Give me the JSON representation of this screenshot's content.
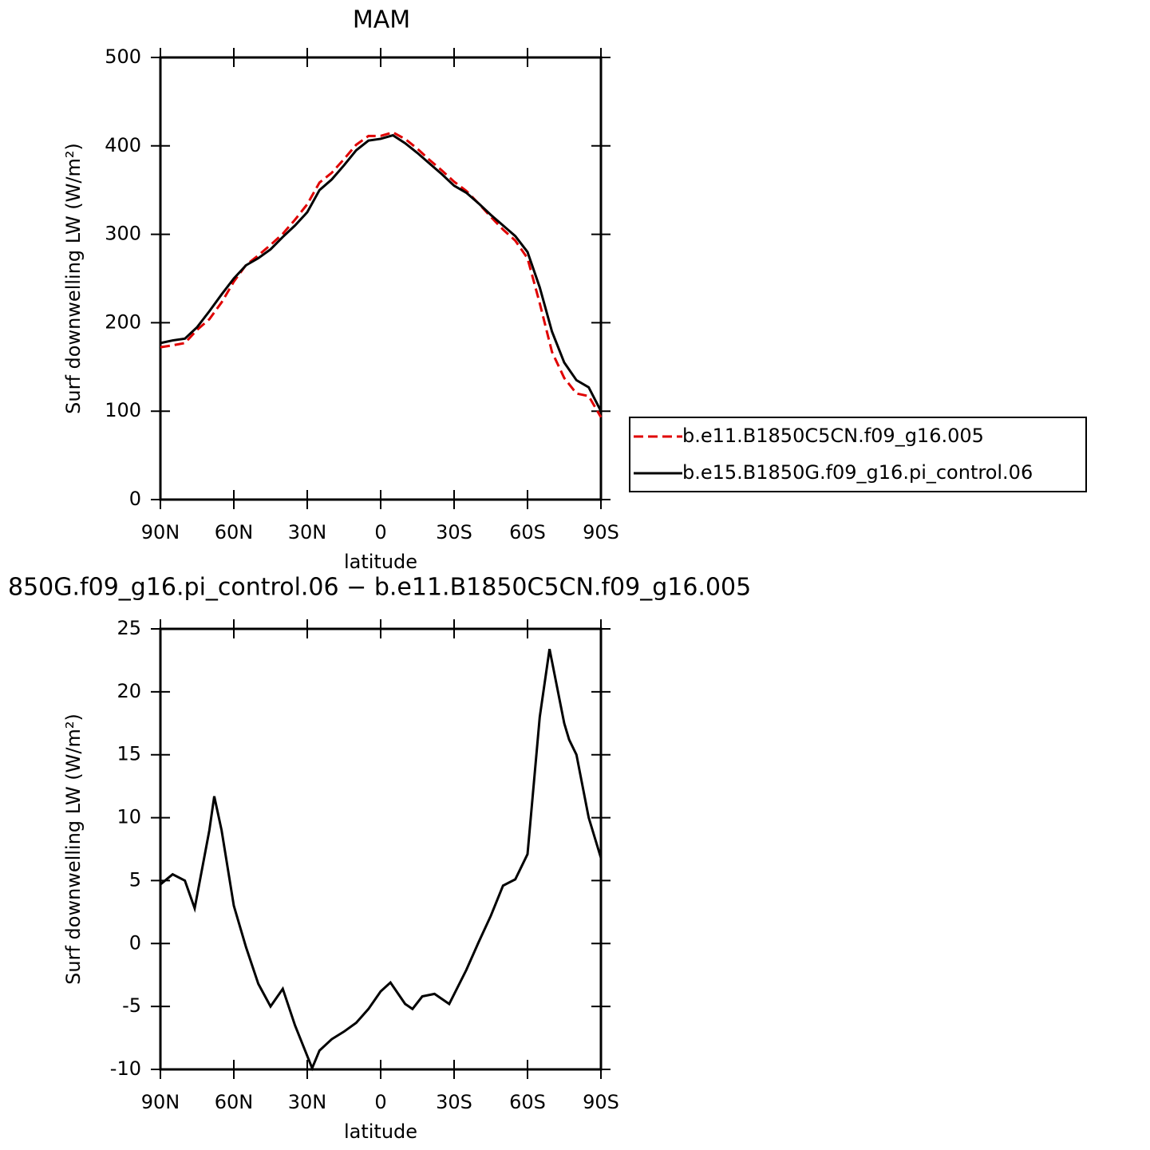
{
  "chart_data": [
    {
      "type": "line",
      "title": "MAM",
      "x_label": "latitude",
      "y_label": "Surf downwelling LW (W/m²)",
      "x": [
        90,
        85,
        80,
        75,
        70,
        65,
        60,
        55,
        50,
        45,
        40,
        35,
        30,
        25,
        20,
        15,
        10,
        5,
        0,
        -5,
        -10,
        -15,
        -20,
        -25,
        -30,
        -35,
        -40,
        -45,
        -50,
        -55,
        -60,
        -65,
        -70,
        -75,
        -80,
        -85,
        -90
      ],
      "series": [
        {
          "name": "b.e11.B1850C5CN.f09_g16.005",
          "color": "#e00000",
          "linestyle": "dashed",
          "values": [
            172.3,
            174.5,
            177,
            192,
            204,
            223,
            246.5,
            265.3,
            276.2,
            288,
            300.6,
            316.5,
            334,
            358.5,
            369.6,
            385,
            401.3,
            411.2,
            411.3,
            415.3,
            407.8,
            396.8,
            384,
            372.2,
            359.5,
            349.1,
            334.9,
            319.8,
            305.4,
            292.9,
            272.9,
            222,
            167,
            137.5,
            120,
            117,
            93.2
          ]
        },
        {
          "name": "b.e15.B1850G.f09_g16.pi_control.06",
          "color": "#000000",
          "linestyle": "solid",
          "values": [
            177,
            180,
            182,
            195,
            213,
            232,
            250,
            265,
            273,
            283,
            297,
            310,
            325,
            350,
            362,
            378,
            395,
            406,
            408,
            412,
            403,
            392,
            380,
            368,
            355,
            347,
            335,
            322,
            310,
            298,
            280,
            240,
            190,
            155,
            135,
            127,
            100
          ]
        }
      ],
      "xlim": [
        90,
        -90
      ],
      "xticks": [
        {
          "value": 90,
          "label": "90N"
        },
        {
          "value": 60,
          "label": "60N"
        },
        {
          "value": 30,
          "label": "30N"
        },
        0,
        {
          "value": -30,
          "label": "30S"
        },
        {
          "value": -60,
          "label": "60S"
        },
        {
          "value": -90,
          "label": "90S"
        }
      ],
      "ylim": [
        0,
        500
      ],
      "yticks": [
        0,
        100,
        200,
        300,
        400,
        500
      ],
      "legend": "right"
    },
    {
      "type": "line",
      "title": "850G.f09_g16.pi_control.06 − b.e11.B1850C5CN.f09_g16.005",
      "x_label": "latitude",
      "y_label": "Surf downwelling LW (W/m²)",
      "x": [
        90,
        85,
        80,
        76,
        70,
        68,
        65,
        60,
        55,
        50,
        45,
        40,
        35,
        28,
        25,
        20,
        15,
        10,
        5,
        0,
        -4,
        -10,
        -13,
        -17,
        -22,
        -28,
        -35,
        -40,
        -45,
        -50,
        -55,
        -60,
        -65,
        -69,
        -75,
        -77,
        -80,
        -85,
        -90
      ],
      "series": [
        {
          "name": "difference",
          "color": "#000000",
          "linestyle": "solid",
          "values": [
            4.7,
            5.5,
            5.0,
            2.8,
            9.0,
            11.7,
            9.0,
            3.0,
            -0.3,
            -3.2,
            -5.0,
            -3.6,
            -6.5,
            -9.9,
            -8.5,
            -7.6,
            -7.0,
            -6.3,
            -5.2,
            -3.8,
            -3.1,
            -4.8,
            -5.2,
            -4.2,
            -4.0,
            -4.8,
            -2.1,
            0.1,
            2.2,
            4.6,
            5.1,
            7.1,
            18.0,
            23.4,
            17.5,
            16.2,
            15.0,
            10.0,
            6.8
          ]
        }
      ],
      "xlim": [
        90,
        -90
      ],
      "xticks": [
        {
          "value": 90,
          "label": "90N"
        },
        {
          "value": 60,
          "label": "60N"
        },
        {
          "value": 30,
          "label": "30N"
        },
        0,
        {
          "value": -30,
          "label": "30S"
        },
        {
          "value": -60,
          "label": "60S"
        },
        {
          "value": -90,
          "label": "90S"
        }
      ],
      "ylim": [
        -10,
        25
      ],
      "yticks": [
        -10,
        -5,
        0,
        5,
        10,
        15,
        20,
        25
      ]
    }
  ]
}
